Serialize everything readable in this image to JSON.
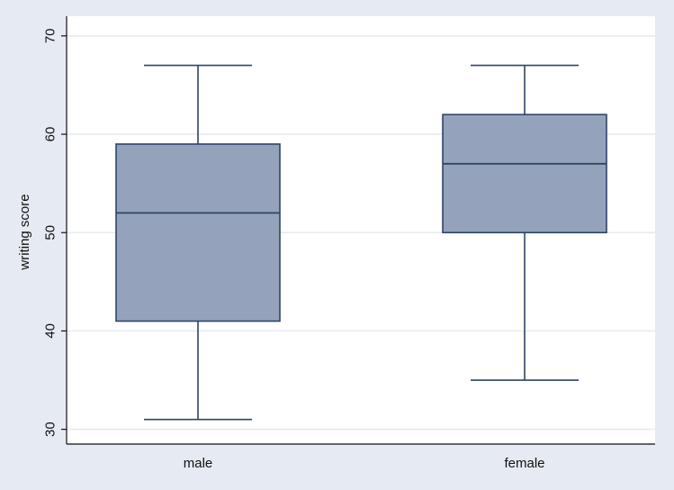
{
  "chart_data": {
    "type": "box",
    "title": "",
    "xlabel": "",
    "ylabel": "writing score",
    "ylim": [
      28.5,
      72
    ],
    "yticks": [
      30,
      40,
      50,
      60,
      70
    ],
    "ytick_labels": [
      "30",
      "40",
      "50",
      "60",
      "70"
    ],
    "grid": true,
    "categories": [
      "male",
      "female"
    ],
    "boxes": [
      {
        "category": "male",
        "whisker_low": 31,
        "q1": 41,
        "median": 52,
        "q3": 59,
        "whisker_high": 67
      },
      {
        "category": "female",
        "whisker_low": 35,
        "q1": 50,
        "median": 57,
        "q3": 62,
        "whisker_high": 67
      }
    ],
    "colors": {
      "background": "#e6eaf2",
      "plot_background": "#ffffff",
      "box_fill": "#94a3bb",
      "box_stroke": "#2f4468",
      "grid": "#e6eaf2",
      "axis": "#111111"
    }
  }
}
